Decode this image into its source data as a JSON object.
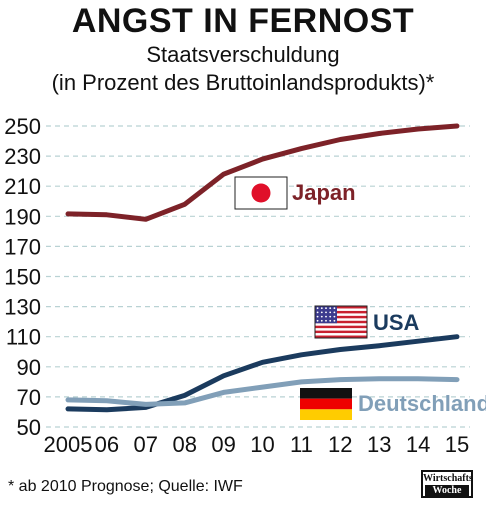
{
  "title": "ANGST IN FERNOST",
  "subtitle_line1": "Staatsverschuldung",
  "subtitle_line2": "(in Prozent des Bruttoinlandsprodukts)*",
  "footnote": "* ab 2010 Prognose; Quelle: IWF",
  "logo": {
    "line1": "Wirtschafts",
    "line2": "Woche"
  },
  "chart_data": {
    "type": "line",
    "x": [
      "2005",
      "06",
      "07",
      "08",
      "09",
      "10",
      "11",
      "12",
      "13",
      "14",
      "15"
    ],
    "ylim": [
      50,
      250
    ],
    "yticks": [
      250,
      230,
      210,
      190,
      170,
      150,
      130,
      110,
      90,
      70,
      50
    ],
    "grid": true,
    "series": [
      {
        "name": "Japan",
        "color": "#7d2228",
        "flag": "japan-flag",
        "values": [
          191.6,
          191,
          188,
          198,
          218,
          228,
          235,
          241,
          245,
          248,
          250
        ]
      },
      {
        "name": "USA",
        "color": "#1b3b5e",
        "flag": "usa-flag",
        "values": [
          62,
          61.5,
          63,
          71,
          84,
          93,
          98,
          101.5,
          104,
          107,
          110
        ]
      },
      {
        "name": "Deutschland",
        "color": "#819fb8",
        "flag": "germany-flag",
        "values": [
          68,
          67.5,
          65,
          66,
          73,
          76.5,
          80,
          81.5,
          82,
          82,
          81.5
        ]
      }
    ]
  }
}
